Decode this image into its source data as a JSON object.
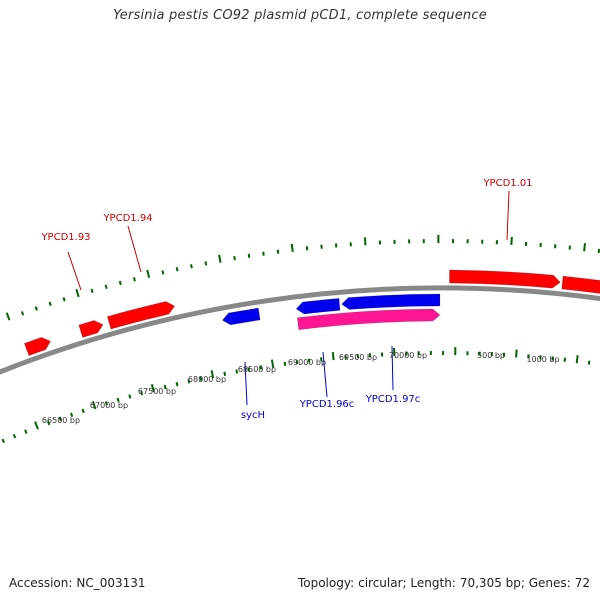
{
  "title": "Yersinia pestis CO92 plasmid pCD1, complete sequence",
  "footer": {
    "accession_label": "Accession:",
    "accession": "NC_003131",
    "topology_label": "Topology:",
    "topology": "circular",
    "length_label": "Length:",
    "length": "70,305 bp",
    "genes_label": "Genes:",
    "genes": "72"
  },
  "colors": {
    "forward_gene": "#ff0000",
    "reverse_gene": "#0000ee",
    "reverse_rna_like": "#ff1493",
    "backbone": "#888888",
    "ticks": "#006400",
    "tick_labels": "#333333",
    "forward_label": "#cc0000",
    "reverse_label": "#0000cc"
  },
  "tick_labels": [
    "66500 bp",
    "67000 bp",
    "67500 bp",
    "68000 bp",
    "68500 bp",
    "69000 bp",
    "69500 bp",
    "70000 bp",
    "500 bp",
    "1000 bp"
  ],
  "gene_labels": [
    {
      "text": "YPCD1.93",
      "strand": "forward"
    },
    {
      "text": "YPCD1.94",
      "strand": "forward"
    },
    {
      "text": "YPCD1.01",
      "strand": "forward"
    },
    {
      "text": "sycH",
      "strand": "reverse"
    },
    {
      "text": "YPCD1.96c",
      "strand": "reverse"
    },
    {
      "text": "YPCD1.97c",
      "strand": "reverse"
    }
  ]
}
